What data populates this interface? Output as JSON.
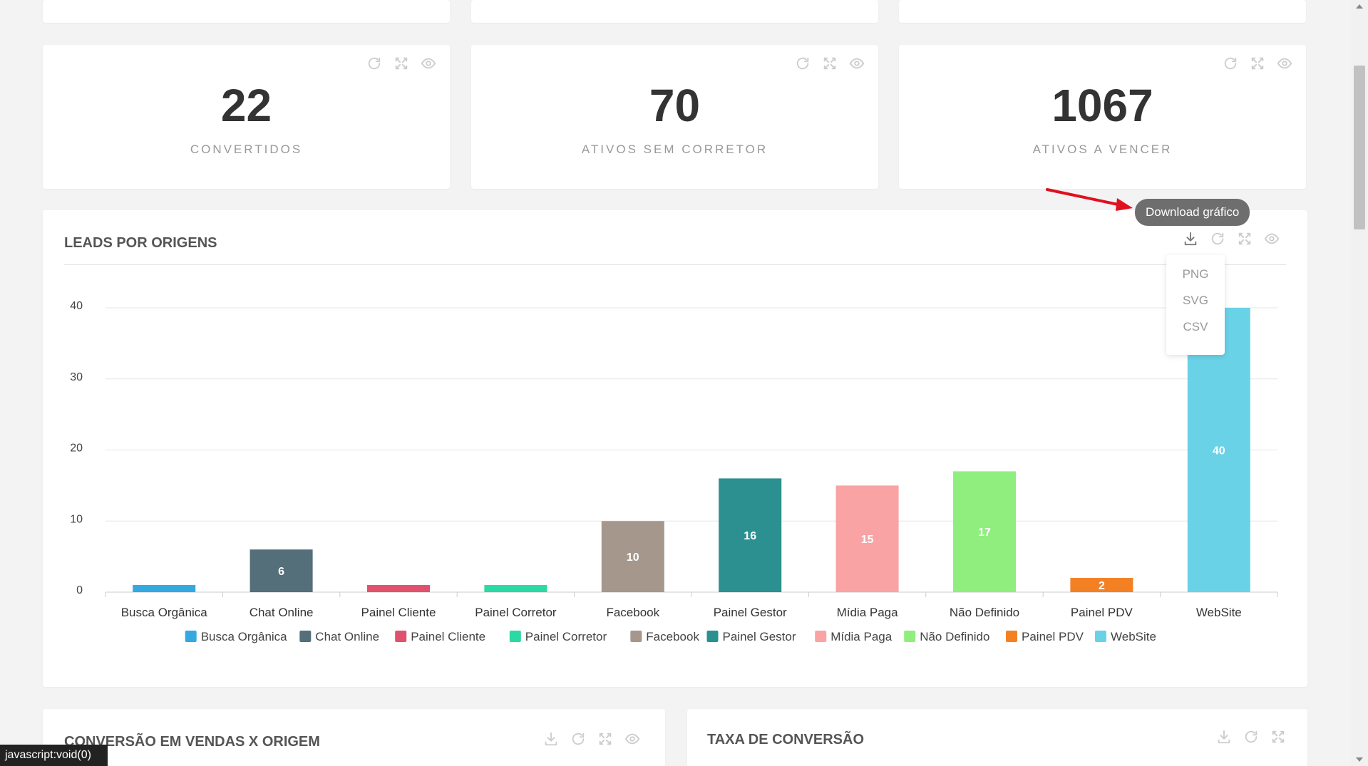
{
  "stats": [
    {
      "value": "22",
      "label": "CONVERTIDOS"
    },
    {
      "value": "70",
      "label": "ATIVOS SEM CORRETOR"
    },
    {
      "value": "1067",
      "label": "ATIVOS A VENCER"
    }
  ],
  "chart_card": {
    "title": "LEADS POR ORIGENS",
    "tooltip": "Download gráfico",
    "download_menu": [
      "PNG",
      "SVG",
      "CSV"
    ]
  },
  "chart_data": {
    "type": "bar",
    "categories": [
      "Busca Orgânica",
      "Chat Online",
      "Painel Cliente",
      "Painel Corretor",
      "Facebook",
      "Painel Gestor",
      "Mídia Paga",
      "Não Definido",
      "Painel PDV",
      "WebSite"
    ],
    "values": [
      1,
      6,
      1,
      1,
      10,
      16,
      15,
      17,
      2,
      40
    ],
    "data_labels": [
      "",
      "6",
      "",
      "",
      "10",
      "16",
      "15",
      "17",
      "2",
      "40"
    ],
    "colors": [
      "#33a9e0",
      "#546e7a",
      "#e0516e",
      "#2bd9a5",
      "#a5978b",
      "#2b908f",
      "#f9a3a4",
      "#90ee7e",
      "#f48024",
      "#69d2e7"
    ],
    "yticks": [
      "0",
      "10",
      "20",
      "30",
      "40"
    ],
    "ylim": [
      0,
      40
    ],
    "grid": true,
    "legend_position": "bottom"
  },
  "bottom_cards": [
    {
      "title": "CONVERSÃO EM VENDAS X ORIGEM"
    },
    {
      "title": "TAXA DE CONVERSÃO"
    }
  ],
  "status_bar": "javascript:void(0)"
}
